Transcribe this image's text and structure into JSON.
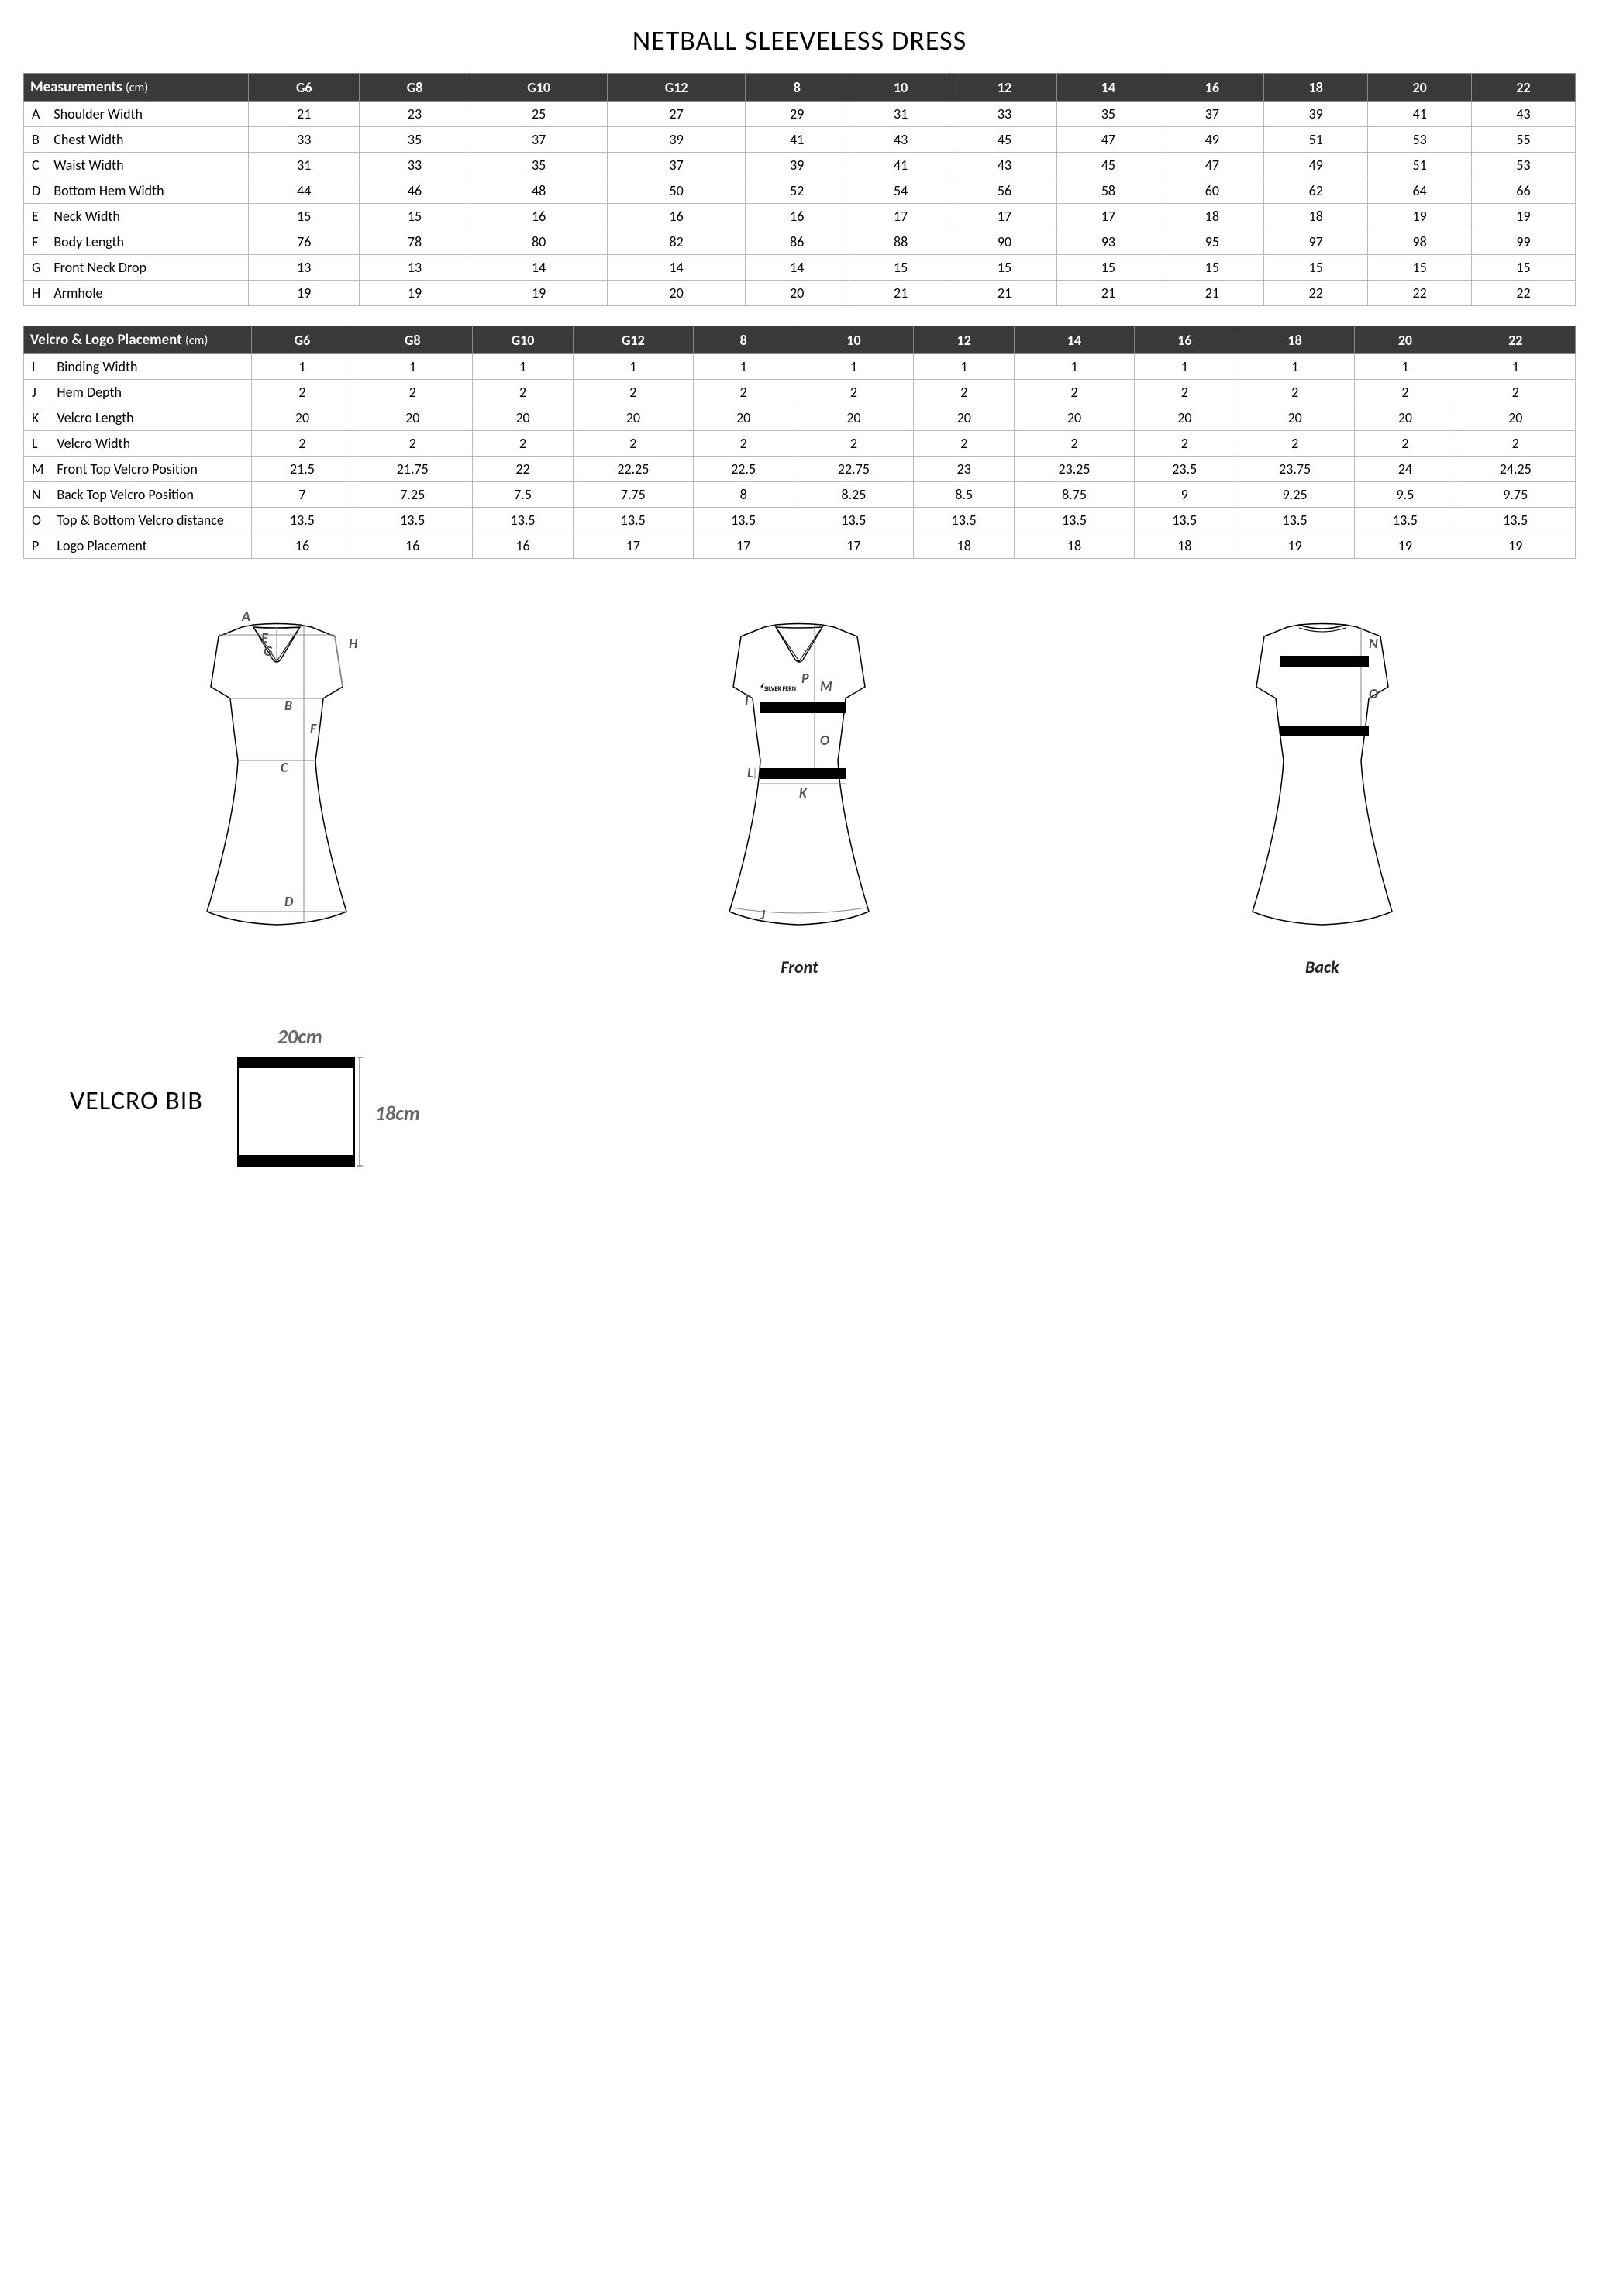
{
  "title": "NETBALL SLEEVELESS DRESS",
  "sizes": [
    "G6",
    "G8",
    "G10",
    "G12",
    "8",
    "10",
    "12",
    "14",
    "16",
    "18",
    "20",
    "22"
  ],
  "table1": {
    "header": "Measurements",
    "unit": "(cm)",
    "rows": [
      {
        "l": "A",
        "label": "Shoulder Width",
        "v": [
          21,
          23,
          25,
          27,
          29,
          31,
          33,
          35,
          37,
          39,
          41,
          43
        ]
      },
      {
        "l": "B",
        "label": "Chest Width",
        "v": [
          33,
          35,
          37,
          39,
          41,
          43,
          45,
          47,
          49,
          51,
          53,
          55
        ]
      },
      {
        "l": "C",
        "label": "Waist Width",
        "v": [
          31,
          33,
          35,
          37,
          39,
          41,
          43,
          45,
          47,
          49,
          51,
          53
        ]
      },
      {
        "l": "D",
        "label": "Bottom Hem Width",
        "v": [
          44,
          46,
          48,
          50,
          52,
          54,
          56,
          58,
          60,
          62,
          64,
          66
        ]
      },
      {
        "l": "E",
        "label": "Neck Width",
        "v": [
          15,
          15,
          16,
          16,
          16,
          17,
          17,
          17,
          18,
          18,
          19,
          19
        ]
      },
      {
        "l": "F",
        "label": "Body Length",
        "v": [
          76,
          78,
          80,
          82,
          86,
          88,
          90,
          93,
          95,
          97,
          98,
          99
        ]
      },
      {
        "l": "G",
        "label": "Front Neck Drop",
        "v": [
          13,
          13,
          14,
          14,
          14,
          15,
          15,
          15,
          15,
          15,
          15,
          15
        ]
      },
      {
        "l": "H",
        "label": "Armhole",
        "v": [
          19,
          19,
          19,
          20,
          20,
          21,
          21,
          21,
          21,
          22,
          22,
          22
        ]
      }
    ]
  },
  "table2": {
    "header": "Velcro & Logo Placement",
    "unit": "(cm)",
    "rows": [
      {
        "l": "I",
        "label": "Binding Width",
        "v": [
          1,
          1,
          1,
          1,
          1,
          1,
          1,
          1,
          1,
          1,
          1,
          1
        ]
      },
      {
        "l": "J",
        "label": "Hem Depth",
        "v": [
          2,
          2,
          2,
          2,
          2,
          2,
          2,
          2,
          2,
          2,
          2,
          2
        ]
      },
      {
        "l": "K",
        "label": "Velcro Length",
        "v": [
          20,
          20,
          20,
          20,
          20,
          20,
          20,
          20,
          20,
          20,
          20,
          20
        ]
      },
      {
        "l": "L",
        "label": "Velcro Width",
        "v": [
          2,
          2,
          2,
          2,
          2,
          2,
          2,
          2,
          2,
          2,
          2,
          2
        ]
      },
      {
        "l": "M",
        "label": "Front Top Velcro Position",
        "v": [
          21.5,
          21.75,
          22,
          22.25,
          22.5,
          22.75,
          23,
          23.25,
          23.5,
          23.75,
          24,
          24.25
        ]
      },
      {
        "l": "N",
        "label": "Back Top Velcro Position",
        "v": [
          7,
          7.25,
          7.5,
          7.75,
          8,
          8.25,
          8.5,
          8.75,
          9,
          9.25,
          9.5,
          9.75
        ]
      },
      {
        "l": "O",
        "label": "Top & Bottom Velcro distance",
        "v": [
          13.5,
          13.5,
          13.5,
          13.5,
          13.5,
          13.5,
          13.5,
          13.5,
          13.5,
          13.5,
          13.5,
          13.5
        ]
      },
      {
        "l": "P",
        "label": "Logo Placement",
        "v": [
          16,
          16,
          16,
          17,
          17,
          17,
          18,
          18,
          18,
          19,
          19,
          19
        ]
      }
    ]
  },
  "diagrams": {
    "front_caption": "Front",
    "back_caption": "Back",
    "labels": {
      "A": "A",
      "B": "B",
      "C": "C",
      "D": "D",
      "E": "E",
      "F": "F",
      "G": "G",
      "H": "H",
      "I": "I",
      "J": "J",
      "K": "K",
      "L": "L",
      "M": "M",
      "N": "N",
      "O": "O",
      "P": "P"
    },
    "logo_text": "SILVER FERN"
  },
  "velcro_bib": {
    "title": "VELCRO BIB",
    "width_label": "20cm",
    "height_label": "18cm"
  },
  "colors": {
    "header_bg": "#3a3a3a",
    "header_text": "#ffffff",
    "border": "#bbbbbb",
    "dim_text": "#666666",
    "stroke": "#000000"
  }
}
